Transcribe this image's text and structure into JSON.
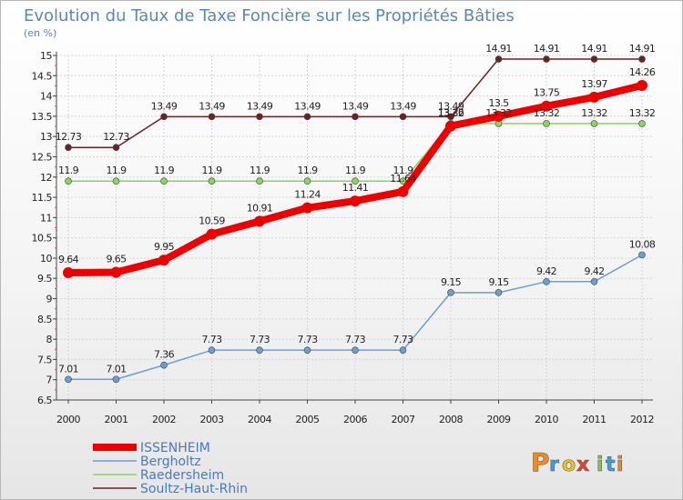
{
  "chart_data": {
    "type": "line",
    "title": "Evolution du Taux de Taxe Foncière sur les Propriétés Bâties",
    "ylabel": "(en %)",
    "xlabel": "",
    "ylim": [
      6.5,
      15
    ],
    "yticks": [
      "6.5",
      "7",
      "7.5",
      "8",
      "8.5",
      "9",
      "9.5",
      "10",
      "10.5",
      "11",
      "11.5",
      "12",
      "12.5",
      "13",
      "13.5",
      "14",
      "14.5",
      "15"
    ],
    "categories": [
      "2000",
      "2001",
      "2002",
      "2003",
      "2004",
      "2005",
      "2006",
      "2007",
      "2008",
      "2009",
      "2010",
      "2011",
      "2012"
    ],
    "grid": true,
    "legend_position": "bottom-left",
    "series": [
      {
        "name": "Soultz-Haut-Rhin",
        "color": "#6b2222",
        "values": [
          12.73,
          12.73,
          13.49,
          13.49,
          13.49,
          13.49,
          13.49,
          13.49,
          13.49,
          14.91,
          14.91,
          14.91,
          14.91
        ],
        "labels": [
          "12.73",
          "12.73",
          "13.49",
          "13.49",
          "13.49",
          "13.49",
          "13.49",
          "13.49",
          "13.49",
          "14.91",
          "14.91",
          "14.91",
          "14.91"
        ]
      },
      {
        "name": "Raedersheim",
        "color": "#88d65e",
        "values": [
          11.9,
          11.9,
          11.9,
          11.9,
          11.9,
          11.9,
          11.9,
          11.9,
          13.32,
          13.32,
          13.32,
          13.32,
          13.32
        ],
        "labels": [
          "11.9",
          "11.9",
          "11.9",
          "11.9",
          "11.9",
          "11.9",
          "11.9",
          "11.9",
          "13.32",
          "13.32",
          "13.32",
          "13.32",
          "13.32"
        ]
      },
      {
        "name": "Bergholtz",
        "color": "#6b9fd4",
        "values": [
          7.01,
          7.01,
          7.36,
          7.73,
          7.73,
          7.73,
          7.73,
          7.73,
          9.15,
          9.15,
          9.42,
          9.42,
          10.08
        ],
        "labels": [
          "7.01",
          "7.01",
          "7.36",
          "7.73",
          "7.73",
          "7.73",
          "7.73",
          "7.73",
          "9.15",
          "9.15",
          "9.42",
          "9.42",
          "10.08"
        ]
      },
      {
        "name": "ISSENHEIM",
        "color": "#ee0000",
        "values": [
          9.64,
          9.65,
          9.95,
          10.59,
          10.91,
          11.24,
          11.41,
          11.64,
          13.26,
          13.5,
          13.75,
          13.97,
          14.26
        ],
        "labels": [
          "9.64",
          "9.65",
          "9.95",
          "10.59",
          "10.91",
          "11.24",
          "11.41",
          "11.64",
          "13.26",
          "13.5",
          "13.75",
          "13.97",
          "14.26"
        ]
      }
    ],
    "legend": [
      "ISSENHEIM",
      "Bergholtz",
      "Raedersheim",
      "Soultz-Haut-Rhin"
    ]
  },
  "brand": {
    "letters": [
      "P",
      "r",
      "o",
      "x",
      "i",
      "t",
      "i"
    ],
    "colors": [
      "#f28a1e",
      "#3ba0dc",
      "#f2c21e",
      "#e8412d",
      "#8bc63f",
      "#3ba0dc",
      "#f28a1e"
    ]
  }
}
